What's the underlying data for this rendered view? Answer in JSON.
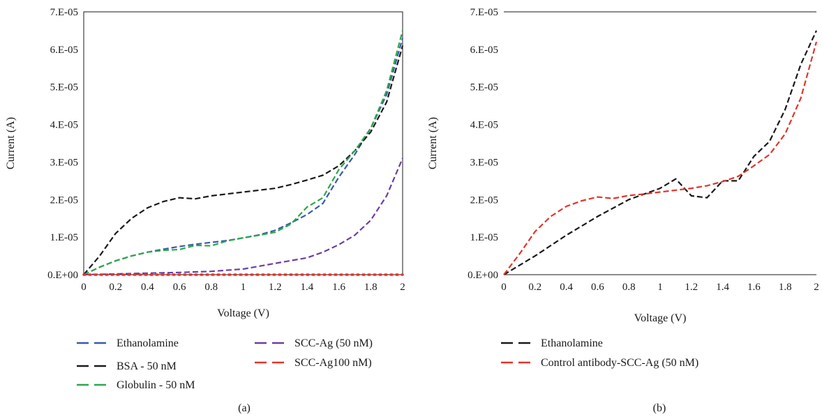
{
  "chart_data": [
    {
      "type": "line",
      "caption": "(a)",
      "xlabel": "Voltage (V)",
      "ylabel": "Current (A)",
      "xlim": [
        0,
        2
      ],
      "ylim": [
        0,
        7e-05
      ],
      "x_ticks": [
        "0",
        "0.2",
        "0.4",
        "0.6",
        "0.8",
        "1",
        "1.2",
        "1.4",
        "1.6",
        "1.8",
        "2"
      ],
      "y_ticks": [
        "0.E+00",
        "1.E-05",
        "2.E-05",
        "3.E-05",
        "4.E-05",
        "5.E-05",
        "6.E-05",
        "7.E-05"
      ],
      "grid": false,
      "legend_position": "bottom",
      "series": [
        {
          "name": "Ethanolamine",
          "color": "#3a5aa8",
          "x": [
            0,
            0.1,
            0.2,
            0.3,
            0.4,
            0.5,
            0.6,
            0.7,
            0.8,
            0.9,
            1.0,
            1.1,
            1.2,
            1.3,
            1.4,
            1.5,
            1.6,
            1.7,
            1.8,
            1.9,
            2.0
          ],
          "y": [
            0,
            2e-06,
            3.7e-06,
            5e-06,
            6e-06,
            6.8e-06,
            7.5e-06,
            8.1e-06,
            8.6e-06,
            9.1e-06,
            9.8e-06,
            1.06e-05,
            1.18e-05,
            1.38e-05,
            1.6e-05,
            1.9e-05,
            2.6e-05,
            3.2e-05,
            3.9e-05,
            4.8e-05,
            6.3e-05
          ]
        },
        {
          "name": "BSA - 50 nM",
          "color": "#1a1a1a",
          "x": [
            0,
            0.1,
            0.2,
            0.3,
            0.4,
            0.5,
            0.6,
            0.7,
            0.8,
            0.9,
            1.0,
            1.1,
            1.2,
            1.3,
            1.4,
            1.5,
            1.6,
            1.7,
            1.8,
            1.9,
            2.0
          ],
          "y": [
            0,
            5e-06,
            1.1e-05,
            1.5e-05,
            1.78e-05,
            1.95e-05,
            2.05e-05,
            2.02e-05,
            2.1e-05,
            2.15e-05,
            2.2e-05,
            2.25e-05,
            2.3e-05,
            2.4e-05,
            2.52e-05,
            2.65e-05,
            2.9e-05,
            3.3e-05,
            3.8e-05,
            4.6e-05,
            6.1e-05
          ]
        },
        {
          "name": "Globulin - 50 nM",
          "color": "#2ca84a",
          "x": [
            0,
            0.1,
            0.2,
            0.3,
            0.4,
            0.5,
            0.6,
            0.7,
            0.8,
            0.9,
            1.0,
            1.1,
            1.2,
            1.3,
            1.4,
            1.5,
            1.6,
            1.7,
            1.8,
            1.9,
            2.0
          ],
          "y": [
            0,
            2e-06,
            3.7e-06,
            5e-06,
            6e-06,
            6.5e-06,
            6.7e-06,
            7.8e-06,
            7.7e-06,
            9e-06,
            9.8e-06,
            1.05e-05,
            1.13e-05,
            1.35e-05,
            1.8e-05,
            2.05e-05,
            2.8e-05,
            3.3e-05,
            3.9e-05,
            4.9e-05,
            6.5e-05
          ]
        },
        {
          "name": "SCC-Ag (50 nM)",
          "color": "#6b3fa0",
          "x": [
            0,
            0.2,
            0.4,
            0.6,
            0.8,
            1.0,
            1.2,
            1.4,
            1.5,
            1.6,
            1.7,
            1.8,
            1.9,
            2.0
          ],
          "y": [
            0,
            2e-07,
            4e-07,
            6e-07,
            9e-07,
            1.5e-06,
            3e-06,
            4.5e-06,
            6e-06,
            8e-06,
            1.05e-05,
            1.45e-05,
            2.1e-05,
            3.1e-05
          ]
        },
        {
          "name": "SCC-Ag100 nM)",
          "color": "#e0352b",
          "x": [
            0,
            0.2,
            0.4,
            0.6,
            0.8,
            1.0,
            1.2,
            1.4,
            1.6,
            1.8,
            2.0
          ],
          "y": [
            0,
            0,
            0,
            0,
            0,
            0,
            0,
            0,
            0,
            0,
            0
          ]
        }
      ]
    },
    {
      "type": "line",
      "caption": "(b)",
      "xlabel": "Voltage (V)",
      "ylabel": "Current (A)",
      "xlim": [
        0,
        2
      ],
      "ylim": [
        0,
        7e-05
      ],
      "x_ticks": [
        "0",
        "0.2",
        "0.4",
        "0.6",
        "0.8",
        "1",
        "1.2",
        "1.4",
        "1.6",
        "1.8",
        "2"
      ],
      "y_ticks": [
        "0.E+00",
        "1.E-05",
        "2.E-05",
        "3.E-05",
        "4.E-05",
        "5.E-05",
        "6.E-05",
        "7.E-05"
      ],
      "grid": false,
      "legend_position": "bottom",
      "series": [
        {
          "name": "Ethanolamine",
          "color": "#1a1a1a",
          "x": [
            0,
            0.2,
            0.4,
            0.6,
            0.8,
            1.0,
            1.1,
            1.2,
            1.3,
            1.4,
            1.5,
            1.6,
            1.7,
            1.8,
            1.9,
            2.0
          ],
          "y": [
            0,
            5e-06,
            1.05e-05,
            1.55e-05,
            2e-05,
            2.3e-05,
            2.55e-05,
            2.1e-05,
            2.05e-05,
            2.5e-05,
            2.5e-05,
            3.15e-05,
            3.55e-05,
            4.4e-05,
            5.6e-05,
            6.5e-05
          ]
        },
        {
          "name": "Control antibody-SCC-Ag (50 nM)",
          "color": "#e0352b",
          "x": [
            0,
            0.1,
            0.2,
            0.3,
            0.4,
            0.5,
            0.6,
            0.7,
            0.8,
            0.9,
            1.0,
            1.1,
            1.2,
            1.3,
            1.4,
            1.5,
            1.6,
            1.7,
            1.8,
            1.9,
            2.0
          ],
          "y": [
            0,
            5.5e-06,
            1.15e-05,
            1.55e-05,
            1.82e-05,
            1.97e-05,
            2.07e-05,
            2.03e-05,
            2.11e-05,
            2.15e-05,
            2.2e-05,
            2.25e-05,
            2.3e-05,
            2.37e-05,
            2.48e-05,
            2.62e-05,
            2.9e-05,
            3.2e-05,
            3.75e-05,
            4.7e-05,
            6.2e-05
          ]
        }
      ]
    }
  ]
}
